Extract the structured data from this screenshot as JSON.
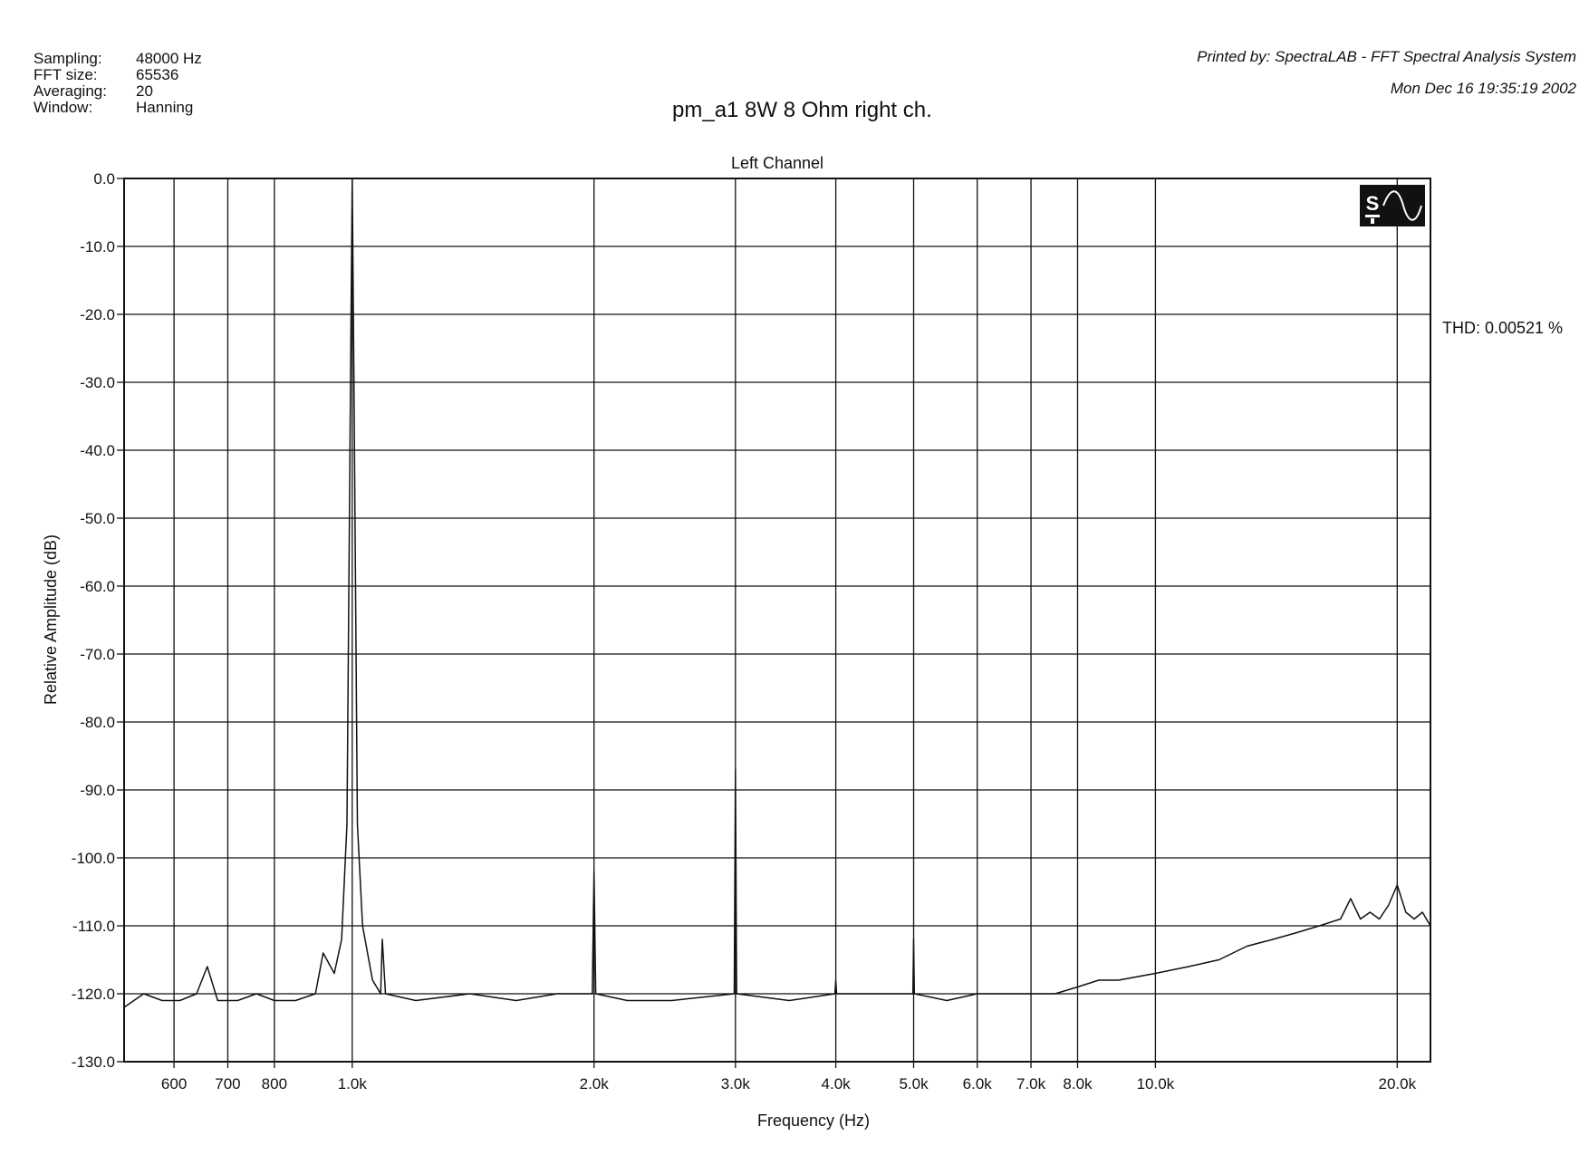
{
  "header": {
    "rows": [
      {
        "key": "Sampling:",
        "value": "48000 Hz"
      },
      {
        "key": "FFT size:",
        "value": "65536"
      },
      {
        "key": "Averaging:",
        "value": "20"
      },
      {
        "key": "Window:",
        "value": "Hanning"
      }
    ],
    "printed_by": "Printed by: SpectraLAB - FFT Spectral Analysis System",
    "date": "Mon Dec 16 19:35:19 2002",
    "title": "pm_a1 8W 8 Ohm right ch."
  },
  "thd": "THD: 0.00521 %",
  "logo": {
    "text": "S",
    "icon": "sine-wave-icon"
  },
  "chart_data": {
    "type": "line",
    "title": "Left Channel",
    "xlabel": "Frequency (Hz)",
    "ylabel": "Relative Amplitude (dB)",
    "x_scale": "log",
    "xlim": [
      520,
      22000
    ],
    "ylim": [
      -130,
      0
    ],
    "grid": true,
    "y_ticks": [
      0,
      -10,
      -20,
      -30,
      -40,
      -50,
      -60,
      -70,
      -80,
      -90,
      -100,
      -110,
      -120,
      -130
    ],
    "y_tick_labels": [
      "0.0",
      "-10.0",
      "-20.0",
      "-30.0",
      "-40.0",
      "-50.0",
      "-60.0",
      "-70.0",
      "-80.0",
      "-90.0",
      "-100.0",
      "-110.0",
      "-120.0",
      "-130.0"
    ],
    "x_ticks": [
      600,
      700,
      800,
      1000,
      2000,
      3000,
      4000,
      5000,
      6000,
      7000,
      8000,
      10000,
      20000
    ],
    "x_tick_labels": [
      "600",
      "700",
      "800",
      "1.0k",
      "2.0k",
      "3.0k",
      "4.0k",
      "5.0k",
      "6.0k",
      "7.0k",
      "8.0k",
      "10.0k",
      "20.0k"
    ],
    "series": [
      {
        "x": [
          520,
          550,
          580,
          610,
          640,
          660,
          680,
          720,
          760,
          800,
          850,
          900,
          920,
          950,
          970,
          985,
          995,
          1000,
          1005,
          1015,
          1030,
          1060,
          1085,
          1090,
          1100,
          1200,
          1400,
          1600,
          1800,
          1990,
          2000,
          2010,
          2200,
          2500,
          2990,
          3000,
          3010,
          3500,
          3990,
          4000,
          4010,
          4500,
          4990,
          5000,
          5010,
          5500,
          6000,
          6500,
          7000,
          7500,
          8000,
          8500,
          9000,
          10000,
          11000,
          12000,
          13000,
          14000,
          15000,
          16000,
          17000,
          17500,
          18000,
          18500,
          19000,
          19500,
          20000,
          20500,
          21000,
          21500,
          22000
        ],
        "y": [
          -122,
          -120,
          -121,
          -121,
          -120,
          -116,
          -121,
          -121,
          -120,
          -121,
          -121,
          -120,
          -114,
          -117,
          -112,
          -95,
          -30,
          0,
          -30,
          -95,
          -110,
          -118,
          -120,
          -112,
          -120,
          -121,
          -120,
          -121,
          -120,
          -120,
          -102,
          -120,
          -121,
          -121,
          -120,
          -87,
          -120,
          -121,
          -120,
          -118,
          -120,
          -120,
          -120,
          -112,
          -120,
          -121,
          -120,
          -120,
          -120,
          -120,
          -119,
          -118,
          -118,
          -117,
          -116,
          -115,
          -113,
          -112,
          -111,
          -110,
          -109,
          -106,
          -109,
          -108,
          -109,
          -107,
          -104,
          -108,
          -109,
          -108,
          -110
        ]
      }
    ]
  }
}
